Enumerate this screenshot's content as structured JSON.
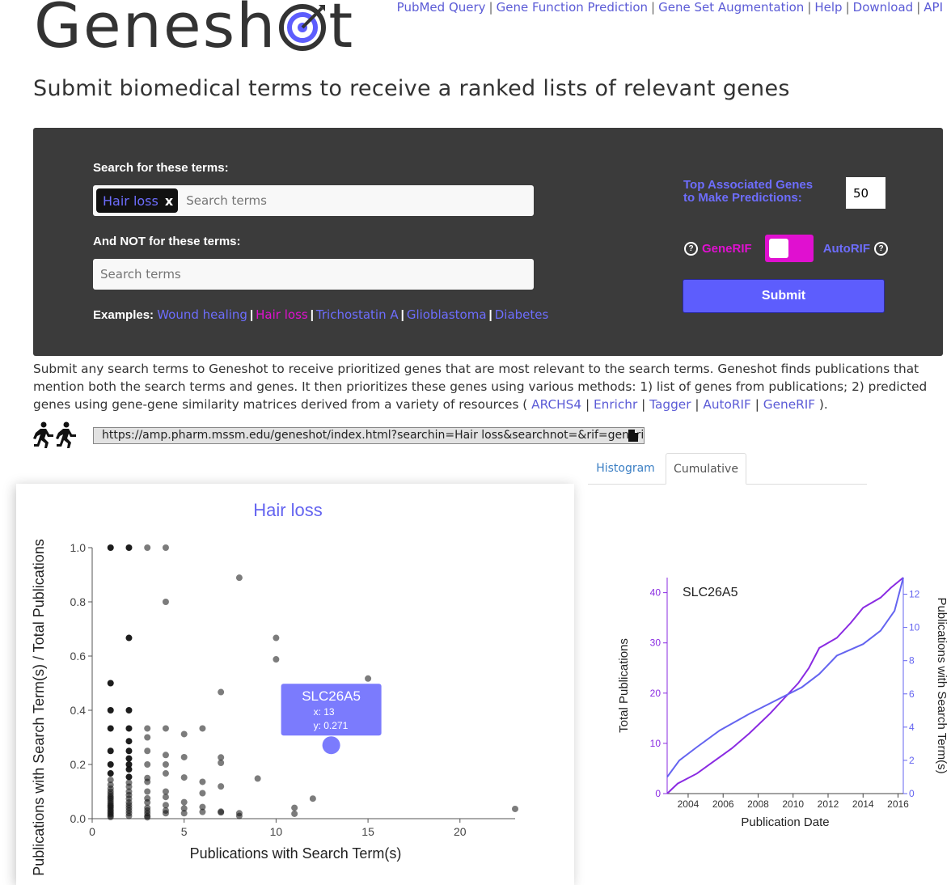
{
  "logo": {
    "prefix": "Genesh",
    "suffix": "t",
    "target_icon": "bullseye-target-icon"
  },
  "topnav": [
    "PubMed Query",
    "Gene Function Prediction",
    "Gene Set Augmentation",
    "Help",
    "Download",
    "API"
  ],
  "headline": "Submit biomedical terms to receive a ranked lists of relevant genes",
  "search": {
    "include_label": "Search for these terms:",
    "chip": "Hair loss",
    "chip_remove": "x",
    "placeholder": "Search terms",
    "exclude_label": "And NOT for these terms:",
    "exclude_placeholder": "Search terms",
    "examples_label": "Examples:",
    "examples": [
      {
        "text": "Wound healing",
        "color": "#6d6dfd"
      },
      {
        "text": "Hair loss",
        "color": "#e010d0"
      },
      {
        "text": "Trichostatin A",
        "color": "#6d6dfd"
      },
      {
        "text": "Glioblastoma",
        "color": "#6d6dfd"
      },
      {
        "text": "Diabetes",
        "color": "#6d6dfd"
      }
    ]
  },
  "options": {
    "top_genes_line1": "Top Associated Genes",
    "top_genes_line2": "to Make Predictions:",
    "top_genes_value": "50",
    "generif": "GeneRIF",
    "autorif": "AutoRIF",
    "submit": "Submit"
  },
  "colors": {
    "accent": "#5d5dfd",
    "magenta": "#e010d0",
    "panel": "#3b3b3b",
    "purple_line": "#8a2be2"
  },
  "description": {
    "text": "Submit any search terms to Geneshot to receive prioritized genes that are most relevant to the search terms. Geneshot finds publications that mention both the search terms and genes. It then prioritizes these genes using various methods: 1) list of genes from publications; 2) predicted genes using gene-gene similarity matrices derived from a variety of resources (",
    "links": [
      "ARCHS4",
      "Enrichr",
      "Tagger",
      "AutoRIF",
      "GeneRIF"
    ],
    "end": ")."
  },
  "share_url": "https://amp.pharm.mssm.edu/geneshot/index.html?searchin=Hair loss&searchnot=&rif=generif",
  "tabs": [
    "Histogram",
    "Cumulative"
  ],
  "chart_data": [
    {
      "type": "scatter",
      "title": "Hair loss",
      "xlabel": "Publications with Search Term(s)",
      "ylabel": "Publications with Search Term(s) / Total Publications",
      "xlim": [
        0,
        23
      ],
      "ylim": [
        0,
        1.0
      ],
      "xticks": [
        0,
        5,
        10,
        15,
        20
      ],
      "yticks": [
        0.0,
        0.2,
        0.4,
        0.6,
        0.8,
        1.0
      ],
      "points": [
        [
          1,
          1.0
        ],
        [
          1,
          0.5
        ],
        [
          1,
          0.4
        ],
        [
          1,
          0.333
        ],
        [
          1,
          0.25
        ],
        [
          1,
          0.2
        ],
        [
          1,
          0.167
        ],
        [
          1,
          0.143
        ],
        [
          1,
          0.125
        ],
        [
          1,
          0.111
        ],
        [
          1,
          0.1
        ],
        [
          1,
          0.091
        ],
        [
          1,
          0.083
        ],
        [
          1,
          0.077
        ],
        [
          1,
          0.071
        ],
        [
          1,
          0.063
        ],
        [
          1,
          0.056
        ],
        [
          1,
          0.05
        ],
        [
          1,
          0.045
        ],
        [
          1,
          0.04
        ],
        [
          1,
          0.033
        ],
        [
          1,
          0.028
        ],
        [
          1,
          0.022
        ],
        [
          1,
          0.017
        ],
        [
          1,
          0.011
        ],
        [
          1,
          0.006
        ],
        [
          2,
          1.0
        ],
        [
          2,
          0.667
        ],
        [
          2,
          0.4
        ],
        [
          2,
          0.333
        ],
        [
          2,
          0.286
        ],
        [
          2,
          0.25
        ],
        [
          2,
          0.222
        ],
        [
          2,
          0.2
        ],
        [
          2,
          0.182
        ],
        [
          2,
          0.154
        ],
        [
          2,
          0.133
        ],
        [
          2,
          0.118
        ],
        [
          2,
          0.1
        ],
        [
          2,
          0.087
        ],
        [
          2,
          0.074
        ],
        [
          2,
          0.06
        ],
        [
          2,
          0.05
        ],
        [
          2,
          0.04
        ],
        [
          2,
          0.03
        ],
        [
          2,
          0.02
        ],
        [
          2,
          0.01
        ],
        [
          3,
          1.0
        ],
        [
          3,
          0.333
        ],
        [
          3,
          0.3
        ],
        [
          3,
          0.25
        ],
        [
          3,
          0.2
        ],
        [
          3,
          0.15
        ],
        [
          3,
          0.136
        ],
        [
          3,
          0.1
        ],
        [
          3,
          0.075
        ],
        [
          3,
          0.06
        ],
        [
          3,
          0.04
        ],
        [
          3,
          0.03
        ],
        [
          3,
          0.02
        ],
        [
          3,
          0.01
        ],
        [
          3,
          0.005
        ],
        [
          4,
          1.0
        ],
        [
          4,
          0.8
        ],
        [
          4,
          0.333
        ],
        [
          4,
          0.235
        ],
        [
          4,
          0.2
        ],
        [
          4,
          0.167
        ],
        [
          4,
          0.1
        ],
        [
          4,
          0.08
        ],
        [
          4,
          0.05
        ],
        [
          4,
          0.03
        ],
        [
          4,
          0.02
        ],
        [
          5,
          0.312
        ],
        [
          5,
          0.227
        ],
        [
          5,
          0.152
        ],
        [
          5,
          0.061
        ],
        [
          5,
          0.038
        ],
        [
          5,
          0.02
        ],
        [
          6,
          0.333
        ],
        [
          6,
          0.136
        ],
        [
          6,
          0.094
        ],
        [
          6,
          0.043
        ],
        [
          6,
          0.025
        ],
        [
          7,
          0.467
        ],
        [
          7,
          0.226
        ],
        [
          7,
          0.206
        ],
        [
          7,
          0.119
        ],
        [
          7,
          0.026
        ],
        [
          7,
          0.023
        ],
        [
          8,
          0.889
        ],
        [
          8,
          0.02
        ],
        [
          8,
          0.01
        ],
        [
          9,
          0.148
        ],
        [
          10,
          0.667
        ],
        [
          10,
          0.588
        ],
        [
          11,
          0.04
        ],
        [
          11,
          0.018
        ],
        [
          12,
          0.074
        ],
        [
          15,
          0.517
        ],
        [
          23,
          0.036
        ]
      ],
      "highlight": {
        "label": "SLC26A5",
        "x": 13,
        "y": 0.271,
        "x_text": "x: 13",
        "y_text": "y: 0.271"
      }
    },
    {
      "type": "line",
      "title": "SLC26A5",
      "xlabel": "Publication Date",
      "ylabel_left": "Total Publications",
      "ylabel_right": "Publications with Search Term(s)",
      "x_ticks": [
        "2004",
        "2006",
        "2008",
        "2010",
        "2012",
        "2014",
        "2016"
      ],
      "xlim": [
        2002.8,
        2016.3
      ],
      "ylim_left": [
        0,
        43
      ],
      "ylim_right": [
        0,
        13
      ],
      "yticks_left": [
        0,
        10,
        20,
        30,
        40
      ],
      "yticks_right": [
        0,
        2,
        4,
        6,
        8,
        10,
        12
      ],
      "series": [
        {
          "axis": "left",
          "color": "#8a2be2",
          "points": [
            [
              2002.8,
              0
            ],
            [
              2003.4,
              2
            ],
            [
              2004.5,
              4
            ],
            [
              2005.3,
              6
            ],
            [
              2006.5,
              9
            ],
            [
              2007.5,
              12
            ],
            [
              2008.7,
              16
            ],
            [
              2009.5,
              19
            ],
            [
              2010.3,
              22
            ],
            [
              2010.9,
              25
            ],
            [
              2011.5,
              29
            ],
            [
              2012.5,
              31
            ],
            [
              2013.3,
              34
            ],
            [
              2014.0,
              37
            ],
            [
              2015.0,
              39
            ],
            [
              2015.6,
              41
            ],
            [
              2016.3,
              43
            ]
          ]
        },
        {
          "axis": "right",
          "color": "#6464f0",
          "points": [
            [
              2002.8,
              1
            ],
            [
              2003.5,
              2
            ],
            [
              2004.5,
              2.8
            ],
            [
              2005.8,
              3.8
            ],
            [
              2007.5,
              4.8
            ],
            [
              2009.0,
              5.6
            ],
            [
              2010.5,
              6.4
            ],
            [
              2011.5,
              7.2
            ],
            [
              2012.5,
              8.3
            ],
            [
              2014.0,
              9
            ],
            [
              2015.0,
              9.8
            ],
            [
              2015.8,
              11
            ],
            [
              2016.3,
              13
            ]
          ]
        }
      ]
    }
  ]
}
